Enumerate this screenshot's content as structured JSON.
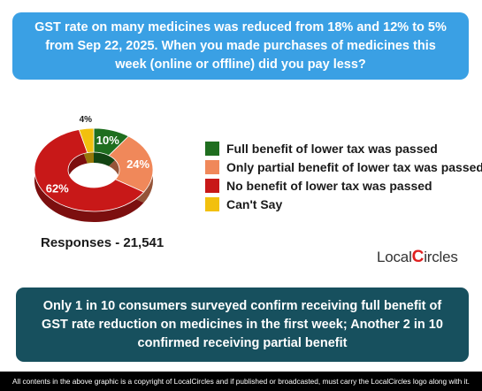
{
  "header": {
    "question": "GST rate on many medicines was reduced from 18% and 12% to 5% from Sep 22, 2025. When you made purchases of medicines this week (online or offline) did you pay less?"
  },
  "chart_data": {
    "type": "pie",
    "categories": [
      "Full benefit of lower tax was passed",
      "Only partial benefit of lower tax was passed",
      "No benefit of lower tax was passed",
      "Can't Say"
    ],
    "values": [
      10,
      24,
      62,
      4
    ],
    "data_labels": [
      "10%",
      "24%",
      "62%",
      "4%"
    ],
    "colors": [
      "#1f6e1f",
      "#f0885a",
      "#c81818",
      "#f2c00e"
    ],
    "legend_position": "right"
  },
  "responses": "Responses - 21,541",
  "brand": {
    "text_before": "Local",
    "text_glyph": "C",
    "text_after": "ircles"
  },
  "finding": "Only 1 in 10 consumers surveyed confirm receiving full benefit of GST rate reduction on medicines in the first week; Another 2 in 10 confirmed receiving partial benefit",
  "footer": "All contents in the above graphic is a copyright of LocalCircles and if published or broadcasted, must carry the LocalCircles logo along with it."
}
